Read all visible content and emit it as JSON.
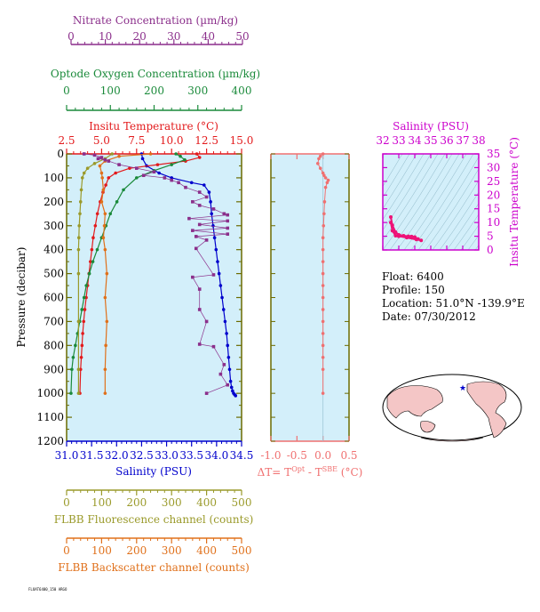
{
  "colors": {
    "nitrate": "#8b2f8b",
    "oxygen": "#1a8a3a",
    "temperature": "#e31a1c",
    "salinity": "#0000cc",
    "fluorescence": "#9a9a2a",
    "backscatter": "#e0701a",
    "delta": "#f07070",
    "inset_salinity": "#cc00cc",
    "inset_track": "#ee1177",
    "panel_bg": "#d3effa",
    "axis": "#6b6b00"
  },
  "info": {
    "float": "Float:  6400",
    "profile": "Profile:  150",
    "location": "Location:  51.0°N  -139.9°E",
    "date": "Date:  07/30/2012"
  },
  "footer": "FLOAT6400_150 ARGO",
  "chart_data": [
    {
      "type": "line",
      "title": "",
      "ylabel": "Pressure (decibar)",
      "ylim": [
        0,
        1200
      ],
      "y_inverted": true,
      "yticks": [
        0,
        100,
        200,
        300,
        400,
        500,
        600,
        700,
        800,
        900,
        1000,
        1100,
        1200
      ],
      "axes": [
        {
          "name": "Nitrate Concentration (µm/kg)",
          "position": "top",
          "range": [
            0,
            50
          ],
          "ticks": [
            0,
            10,
            20,
            30,
            40,
            50
          ]
        },
        {
          "name": "Optode Oxygen Concentration (µm/kg)",
          "position": "top",
          "range": [
            0,
            400
          ],
          "ticks": [
            0,
            100,
            200,
            300,
            400
          ]
        },
        {
          "name": "Insitu Temperature (°C)",
          "position": "top",
          "range": [
            2.5,
            15.0
          ],
          "ticks": [
            "2.5",
            "5.0",
            "7.5",
            "10.0",
            "12.5",
            "15.0"
          ]
        },
        {
          "name": "Salinity (PSU)",
          "position": "bottom",
          "range": [
            31.0,
            34.5
          ],
          "ticks": [
            "31.0",
            "31.5",
            "32.0",
            "32.5",
            "33.0",
            "33.5",
            "34.0",
            "34.5"
          ]
        },
        {
          "name": "FLBB Fluorescence channel (counts)",
          "position": "bottom",
          "range": [
            0,
            500
          ],
          "ticks": [
            0,
            100,
            200,
            300,
            400,
            500
          ]
        },
        {
          "name": "FLBB Backscatter channel (counts)",
          "position": "bottom",
          "range": [
            0,
            500
          ],
          "ticks": [
            0,
            100,
            200,
            300,
            400,
            500
          ]
        }
      ],
      "series": [
        {
          "key": "salinity",
          "axis": 3,
          "x": [
            32.5,
            32.52,
            32.6,
            32.85,
            33.1,
            33.5,
            33.75,
            33.85,
            33.88,
            33.9,
            33.93,
            33.96,
            33.99,
            34.02,
            34.05,
            34.08,
            34.11,
            34.14,
            34.17,
            34.2,
            34.22,
            34.24,
            34.26,
            34.28,
            34.3,
            34.32,
            34.34,
            34.36,
            34.38
          ],
          "y": [
            0,
            20,
            50,
            80,
            100,
            120,
            130,
            160,
            200,
            250,
            300,
            350,
            400,
            450,
            500,
            550,
            600,
            650,
            700,
            750,
            800,
            850,
            900,
            950,
            975,
            990,
            1000,
            1005,
            1010
          ]
        },
        {
          "key": "temperature",
          "axis": 2,
          "x": [
            11.8,
            12.0,
            11.0,
            9.0,
            7.0,
            6.0,
            5.5,
            5.3,
            5.1,
            4.9,
            4.7,
            4.55,
            4.4,
            4.3,
            4.2,
            4.1,
            4.0,
            3.9,
            3.8,
            3.72,
            3.65,
            3.6,
            3.55,
            3.5,
            3.45
          ],
          "y": [
            0,
            15,
            30,
            45,
            60,
            80,
            100,
            130,
            160,
            200,
            250,
            300,
            350,
            400,
            450,
            500,
            550,
            600,
            650,
            700,
            750,
            800,
            850,
            900,
            1000
          ]
        },
        {
          "key": "oxygen",
          "axis": 1,
          "x": [
            250,
            260,
            270,
            240,
            200,
            160,
            130,
            115,
            100,
            90,
            80,
            70,
            60,
            52,
            45,
            40,
            35,
            30,
            25,
            20,
            15,
            12,
            10
          ],
          "y": [
            0,
            10,
            25,
            45,
            70,
            100,
            150,
            200,
            250,
            300,
            350,
            400,
            450,
            500,
            550,
            600,
            650,
            700,
            750,
            800,
            850,
            900,
            1000
          ]
        },
        {
          "key": "fluorescence",
          "axis": 4,
          "x": [
            130,
            110,
            80,
            60,
            50,
            45,
            42,
            40,
            38,
            36,
            35,
            34,
            34,
            34,
            34,
            34
          ],
          "y": [
            0,
            20,
            40,
            60,
            80,
            100,
            150,
            200,
            250,
            300,
            350,
            400,
            500,
            700,
            900,
            1000
          ]
        },
        {
          "key": "backscatter",
          "axis": 5,
          "x": [
            240,
            150,
            110,
            95,
            100,
            102,
            105,
            100,
            110,
            108,
            105,
            110,
            115,
            110,
            115,
            112,
            110,
            110
          ],
          "y": [
            0,
            10,
            30,
            50,
            80,
            100,
            150,
            200,
            250,
            300,
            350,
            400,
            500,
            600,
            700,
            800,
            900,
            1000
          ]
        },
        {
          "key": "nitrate",
          "axis": 0,
          "style": "zigzag",
          "x": [
            5,
            8,
            10,
            9,
            11,
            12,
            15,
            20,
            25,
            22,
            28,
            30,
            32,
            34,
            38,
            40,
            36,
            38,
            42,
            45,
            46,
            35,
            46,
            38,
            46,
            36,
            46,
            37,
            40,
            37,
            42,
            36,
            38,
            38,
            40,
            38,
            42,
            45,
            44,
            46,
            40
          ],
          "y": [
            0,
            5,
            15,
            20,
            25,
            30,
            45,
            60,
            75,
            90,
            100,
            110,
            120,
            140,
            160,
            180,
            200,
            215,
            230,
            250,
            255,
            270,
            280,
            295,
            310,
            320,
            335,
            345,
            360,
            395,
            505,
            515,
            565,
            650,
            700,
            795,
            805,
            880,
            920,
            965,
            1000
          ]
        }
      ]
    },
    {
      "type": "line",
      "xlabel": "ΔT= Tᴼᵖᵗ - Tˢᴮᴱ (°C)",
      "xlim": [
        -1.0,
        0.5
      ],
      "xticks": [
        "-1.0",
        "-0.5",
        "0.0",
        "0.5"
      ],
      "ylim": [
        0,
        1200
      ],
      "series": [
        {
          "key": "delta",
          "x": [
            0.0,
            -0.05,
            -0.08,
            -0.1,
            -0.05,
            0.0,
            0.02,
            0.05,
            0.1,
            0.08,
            0.05,
            0.03,
            0.02,
            0.01,
            0.0,
            0.0,
            0.0,
            0.0,
            0.0,
            0.0,
            0.0,
            0.0,
            0.0,
            0.0,
            0.0,
            0.0,
            0.0
          ],
          "y": [
            0,
            10,
            20,
            40,
            60,
            80,
            90,
            100,
            110,
            120,
            140,
            200,
            250,
            300,
            350,
            400,
            450,
            500,
            550,
            600,
            650,
            700,
            750,
            800,
            850,
            900,
            1000
          ]
        }
      ]
    },
    {
      "type": "line",
      "xlabel": "Salinity (PSU)",
      "ylabel": "Insitu Temperature (°C)",
      "xlim": [
        32,
        38
      ],
      "ylim": [
        0,
        35
      ],
      "xticks": [
        32,
        33,
        34,
        35,
        36,
        37,
        38
      ],
      "yticks": [
        0,
        5,
        10,
        15,
        20,
        25,
        30,
        35
      ],
      "series": [
        {
          "key": "ts",
          "x": [
            32.5,
            32.6,
            32.8,
            33.0,
            33.3,
            33.6,
            33.8,
            34.0,
            34.2,
            34.4,
            34.1,
            33.5,
            33.0,
            32.8,
            32.6,
            32.5
          ],
          "y": [
            12.0,
            9.0,
            6.5,
            5.5,
            5.2,
            5.0,
            4.9,
            4.7,
            4.0,
            3.5,
            3.8,
            4.5,
            5.0,
            5.2,
            7.0,
            10.0
          ]
        }
      ]
    }
  ]
}
